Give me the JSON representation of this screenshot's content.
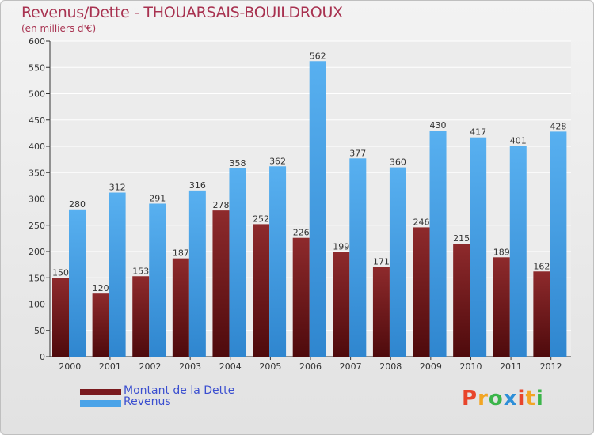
{
  "chart_data": {
    "type": "bar",
    "title": "Revenus/Dette - THOUARSAIS-BOUILDROUX",
    "subtitle": "(en milliers d'€)",
    "xlabel": "",
    "ylabel": "",
    "categories": [
      "2000",
      "2001",
      "2002",
      "2003",
      "2004",
      "2005",
      "2006",
      "2007",
      "2008",
      "2009",
      "2010",
      "2011",
      "2012"
    ],
    "series": [
      {
        "name": "Montant de la Dette",
        "color": "#7a1a1e",
        "values": [
          150,
          120,
          153,
          187,
          278,
          252,
          226,
          199,
          171,
          246,
          215,
          189,
          162
        ]
      },
      {
        "name": "Revenus",
        "color": "#4aa3e8",
        "values": [
          280,
          312,
          291,
          316,
          358,
          362,
          562,
          377,
          360,
          430,
          417,
          401,
          428
        ]
      }
    ],
    "ylim": [
      0,
      600
    ],
    "yticks": [
      0,
      50,
      100,
      150,
      200,
      250,
      300,
      350,
      400,
      450,
      500,
      550,
      600
    ],
    "grid": true,
    "legend": "bottom-left"
  },
  "branding": {
    "logo_text": "Proxiti",
    "logo_colors": [
      "#e8452b",
      "#f2a524",
      "#3bb54a",
      "#2e8fd8",
      "#e8452b",
      "#f2a524",
      "#3bb54a"
    ]
  }
}
